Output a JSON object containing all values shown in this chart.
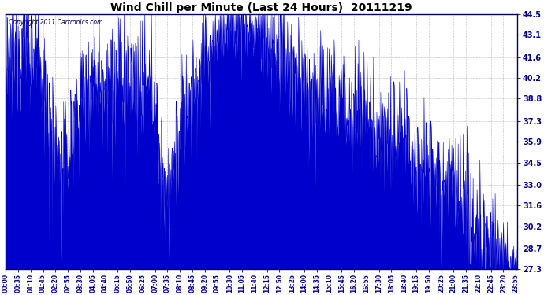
{
  "title": "Wind Chill per Minute (Last 24 Hours)  20111219",
  "copyright_text": "Copyright 2011 Cartronics.com",
  "line_color": "#0000CC",
  "background_color": "#ffffff",
  "plot_bg_color": "#ffffff",
  "grid_color": "#bbbbbb",
  "yticks": [
    27.3,
    28.7,
    30.2,
    31.6,
    33.0,
    34.5,
    35.9,
    37.3,
    38.8,
    40.2,
    41.6,
    43.1,
    44.5
  ],
  "ymin": 27.3,
  "ymax": 44.5,
  "figsize": [
    6.9,
    3.75
  ],
  "dpi": 100,
  "tick_step_minutes": 35,
  "n_minutes": 1440
}
